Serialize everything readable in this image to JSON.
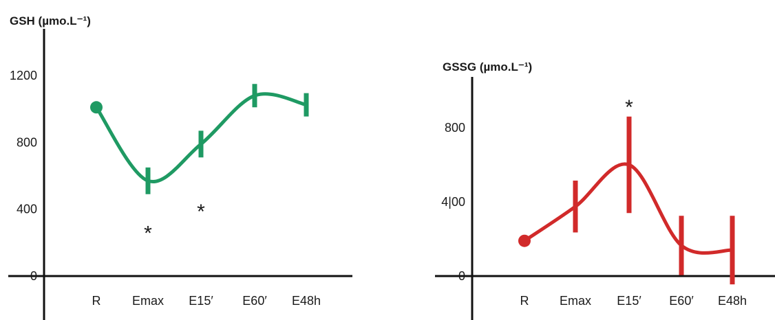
{
  "chart_data": [
    {
      "type": "line",
      "ylabel": "GSH (µmo.L⁻¹)",
      "categories": [
        "R",
        "Emax",
        "E15′",
        "E60′",
        "E48h"
      ],
      "yticks": [
        0,
        400,
        800,
        1200
      ],
      "ylim": [
        0,
        1350
      ],
      "color": "#1f9a63",
      "series": [
        {
          "values": [
            1010,
            570,
            790,
            1080,
            1025
          ],
          "error": [
            0,
            80,
            80,
            70,
            70
          ]
        }
      ],
      "annotations": [
        {
          "category_index": 1,
          "value": 290,
          "text": "*"
        },
        {
          "category_index": 2,
          "value": 420,
          "text": "*"
        }
      ]
    },
    {
      "type": "line",
      "ylabel": "GSSG (µmo.L⁻¹)",
      "categories": [
        "R",
        "Emax",
        "E15′",
        "E60′",
        "E48h"
      ],
      "yticks": [
        0,
        400,
        800
      ],
      "ytick_labels": [
        "0",
        "4|00",
        "800"
      ],
      "ylim": [
        0,
        1100
      ],
      "color": "#d12a2a",
      "series": [
        {
          "values": [
            190,
            375,
            600,
            165,
            140
          ],
          "error": [
            0,
            140,
            260,
            160,
            185
          ]
        }
      ],
      "annotations": [
        {
          "category_index": 2,
          "value": 940,
          "text": "*"
        }
      ]
    }
  ]
}
